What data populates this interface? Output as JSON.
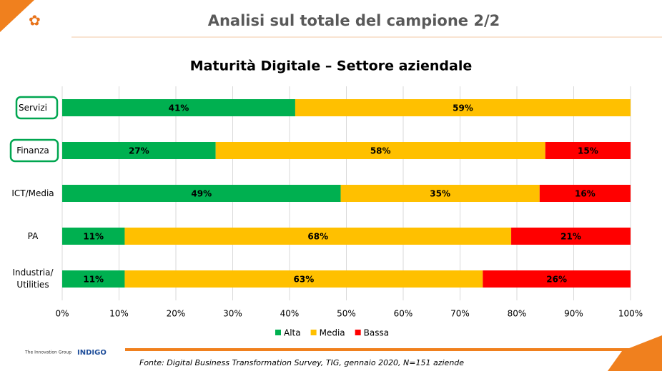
{
  "header": {
    "title": "Analisi sul totale del campione 2/2"
  },
  "chart_data": {
    "type": "stacked-bar-horizontal",
    "title": "Maturità Digitale – Settore aziendale",
    "categories": [
      "Servizi",
      "Finanza",
      "ICT/Media",
      "PA",
      "Industria/ Utilities"
    ],
    "series": [
      {
        "name": "Alta",
        "color": "#00b050",
        "values": [
          41,
          27,
          49,
          11,
          11
        ],
        "value_labels": [
          "41%",
          "27%",
          "49%",
          "11%",
          "11%"
        ]
      },
      {
        "name": "Media",
        "color": "#ffc000",
        "values": [
          59,
          58,
          35,
          68,
          63
        ],
        "value_labels": [
          "59%",
          "58%",
          "35%",
          "68%",
          "63%"
        ]
      },
      {
        "name": "Bassa",
        "color": "#ff0000",
        "values": [
          null,
          15,
          16,
          21,
          26
        ],
        "value_labels": [
          null,
          "15%",
          "16%",
          "21%",
          "26%"
        ]
      }
    ],
    "xlim": [
      0,
      100
    ],
    "xticks": [
      {
        "value": 0,
        "label": "0%"
      },
      {
        "value": 10,
        "label": "10%"
      },
      {
        "value": 20,
        "label": "20%"
      },
      {
        "value": 30,
        "label": "30%"
      },
      {
        "value": 40,
        "label": "40%"
      },
      {
        "value": 50,
        "label": "50%"
      },
      {
        "value": 60,
        "label": "60%"
      },
      {
        "value": 70,
        "label": "70%"
      },
      {
        "value": 80,
        "label": "80%"
      },
      {
        "value": 90,
        "label": "90%"
      },
      {
        "value": 100,
        "label": "100%"
      }
    ],
    "grid": true,
    "legend": "bottom"
  },
  "footer": {
    "source": "Fonte: Digital Business Transformation Survey, TIG, gennaio 2020, N=151 aziende",
    "logos": [
      "The Innovation Group",
      "INDIGO"
    ]
  }
}
